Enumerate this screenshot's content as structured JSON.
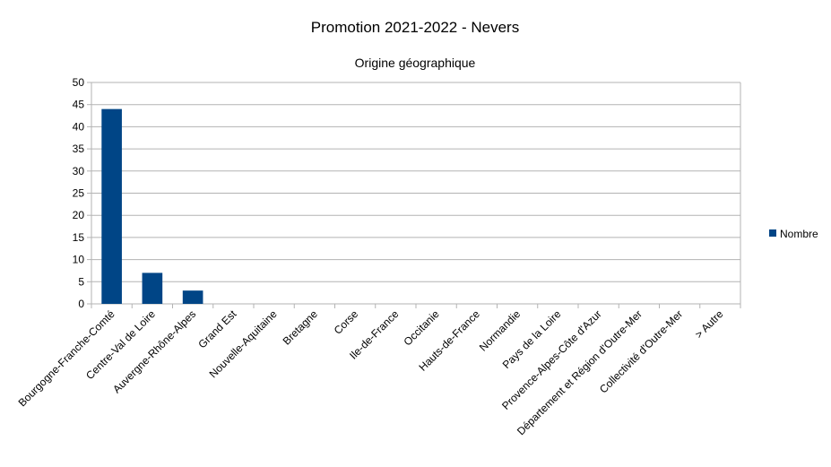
{
  "chart_data": {
    "type": "bar",
    "title": "Promotion 2021-2022 - Nevers",
    "subtitle": "Origine géographique",
    "categories": [
      "Bourgogne-Franche-Comté",
      "Centre-Val de Loire",
      "Auvergne-Rhône-Alpes",
      "Grand Est",
      "Nouvelle-Aquitaine",
      "Bretagne",
      "Corse",
      "Ile-de-France",
      "Occitanie",
      "Hauts-de-France",
      "Normandie",
      "Pays de la Loire",
      "Provence-Alpes-Côte d'Azur",
      "Département et Région d'Outre-Mer",
      "Collectivité d'Outre-Mer",
      "> Autre"
    ],
    "series": [
      {
        "name": "Nombre",
        "color": "#004586",
        "values": [
          44,
          7,
          3,
          0,
          0,
          0,
          0,
          0,
          0,
          0,
          0,
          0,
          0,
          0,
          0,
          0
        ]
      }
    ],
    "ylim": [
      0,
      50
    ],
    "yticks": [
      "0",
      "5",
      "10",
      "15",
      "20",
      "25",
      "30",
      "35",
      "40",
      "45",
      "50"
    ],
    "grid": true,
    "legend_position": "right"
  }
}
